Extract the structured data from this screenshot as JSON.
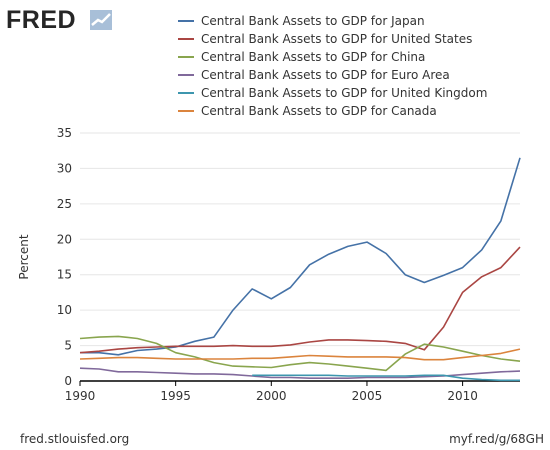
{
  "header": {
    "logo_text": "FRED",
    "logo_icon": "line-graph-icon"
  },
  "footer": {
    "source": "fred.stlouisfed.org",
    "short_link": "myf.red/g/68GH"
  },
  "chart_data": {
    "type": "line",
    "ylabel": "Percent",
    "xlabel": "",
    "xlim": [
      1990,
      2013
    ],
    "ylim": [
      0,
      35
    ],
    "x_ticks": [
      1990,
      1995,
      2000,
      2005,
      2010
    ],
    "y_ticks": [
      0,
      5,
      10,
      15,
      20,
      25,
      30,
      35
    ],
    "grid": "horizontal",
    "legend_position": "top",
    "series": [
      {
        "name": "Central Bank Assets to GDP for Japan",
        "color": "#4572a7",
        "x": [
          1990,
          1991,
          1992,
          1993,
          1994,
          1995,
          1996,
          1997,
          1998,
          1999,
          2000,
          2001,
          2002,
          2003,
          2004,
          2005,
          2006,
          2007,
          2008,
          2009,
          2010,
          2011,
          2012,
          2013
        ],
        "y": [
          4.0,
          4.0,
          3.7,
          4.3,
          4.5,
          4.8,
          5.6,
          6.2,
          10.0,
          13.0,
          11.6,
          13.2,
          16.4,
          17.9,
          19.0,
          19.6,
          18.0,
          15.0,
          13.9,
          14.9,
          16.0,
          18.5,
          22.6,
          31.5
        ]
      },
      {
        "name": "Central Bank Assets to GDP for United States",
        "color": "#aa4643",
        "x": [
          1990,
          1991,
          1992,
          1993,
          1994,
          1995,
          1996,
          1997,
          1998,
          1999,
          2000,
          2001,
          2002,
          2003,
          2004,
          2005,
          2006,
          2007,
          2008,
          2009,
          2010,
          2011,
          2012,
          2013
        ],
        "y": [
          4.0,
          4.2,
          4.5,
          4.7,
          4.8,
          4.9,
          4.9,
          4.9,
          5.0,
          4.9,
          4.9,
          5.1,
          5.5,
          5.8,
          5.8,
          5.7,
          5.6,
          5.3,
          4.4,
          7.6,
          12.5,
          14.7,
          16.0,
          18.9
        ]
      },
      {
        "name": "Central Bank Assets to GDP for China",
        "color": "#89a54e",
        "x": [
          1990,
          1991,
          1992,
          1993,
          1994,
          1995,
          1996,
          1997,
          1998,
          1999,
          2000,
          2001,
          2002,
          2003,
          2004,
          2005,
          2006,
          2007,
          2008,
          2009,
          2010,
          2011,
          2012,
          2013
        ],
        "y": [
          6.0,
          6.2,
          6.3,
          6.0,
          5.3,
          4.0,
          3.4,
          2.6,
          2.1,
          2.0,
          1.9,
          2.3,
          2.6,
          2.4,
          2.1,
          1.8,
          1.5,
          3.8,
          5.2,
          4.8,
          4.2,
          3.6,
          3.1,
          2.8
        ]
      },
      {
        "name": "Central Bank Assets to GDP for Euro Area",
        "color": "#80699b",
        "x": [
          1990,
          1991,
          1992,
          1993,
          1994,
          1995,
          1996,
          1997,
          1998,
          1999,
          2000,
          2001,
          2002,
          2003,
          2004,
          2005,
          2006,
          2007,
          2008,
          2009,
          2010,
          2011,
          2012,
          2013
        ],
        "y": [
          1.8,
          1.7,
          1.3,
          1.3,
          1.2,
          1.1,
          1.0,
          1.0,
          0.9,
          0.7,
          0.5,
          0.5,
          0.4,
          0.4,
          0.4,
          0.5,
          0.5,
          0.5,
          0.6,
          0.7,
          0.9,
          1.1,
          1.3,
          1.4
        ]
      },
      {
        "name": "Central Bank Assets to GDP for United Kingdom",
        "color": "#3d96ae",
        "x": [
          1999,
          2000,
          2001,
          2002,
          2003,
          2004,
          2005,
          2006,
          2007,
          2008,
          2009,
          2010,
          2011,
          2012,
          2013
        ],
        "y": [
          0.8,
          0.8,
          0.8,
          0.8,
          0.8,
          0.7,
          0.7,
          0.7,
          0.7,
          0.8,
          0.8,
          0.4,
          0.2,
          0.1,
          0.1
        ]
      },
      {
        "name": "Central Bank Assets to GDP for Canada",
        "color": "#db843d",
        "x": [
          1990,
          1991,
          1992,
          1993,
          1994,
          1995,
          1996,
          1997,
          1998,
          1999,
          2000,
          2001,
          2002,
          2003,
          2004,
          2005,
          2006,
          2007,
          2008,
          2009,
          2010,
          2011,
          2012,
          2013
        ],
        "y": [
          3.1,
          3.2,
          3.3,
          3.3,
          3.2,
          3.1,
          3.1,
          3.1,
          3.1,
          3.2,
          3.2,
          3.4,
          3.6,
          3.5,
          3.4,
          3.4,
          3.4,
          3.3,
          3.0,
          3.0,
          3.3,
          3.6,
          3.9,
          4.5
        ]
      }
    ]
  }
}
